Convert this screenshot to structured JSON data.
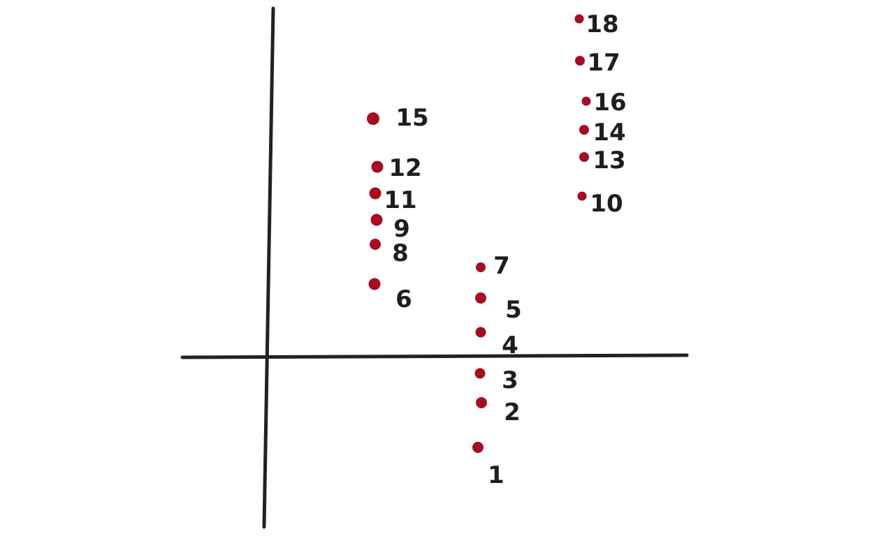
{
  "colors": {
    "background": "#ffffff",
    "axis": "#222222",
    "point": "#a50d22",
    "label": "#1e1e1e"
  },
  "points": [
    {
      "label": "1"
    },
    {
      "label": "2"
    },
    {
      "label": "3"
    },
    {
      "label": "4"
    },
    {
      "label": "5"
    },
    {
      "label": "6"
    },
    {
      "label": "7"
    },
    {
      "label": "8"
    },
    {
      "label": "9"
    },
    {
      "label": "10"
    },
    {
      "label": "11"
    },
    {
      "label": "12"
    },
    {
      "label": "13"
    },
    {
      "label": "14"
    },
    {
      "label": "15"
    },
    {
      "label": "16"
    },
    {
      "label": "17"
    },
    {
      "label": "18"
    }
  ]
}
